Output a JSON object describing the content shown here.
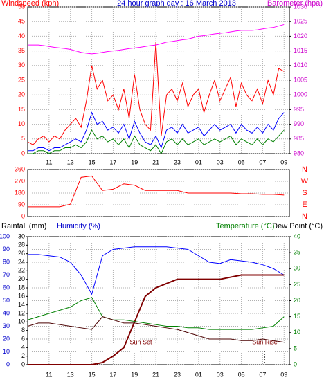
{
  "chart_data": [
    {
      "type": "line",
      "title": "24 hour graph day : 16 March 2013",
      "title_color": "#0000cc",
      "axis_titles": [
        {
          "text": "Windspeed (kph)",
          "color": "#ff0000"
        },
        {
          "text": "Barometer (hpa)",
          "color": "#cc00cc"
        }
      ],
      "x": [
        0,
        0.5,
        1,
        1.5,
        2,
        2.5,
        3,
        3.5,
        4,
        4.5,
        5,
        5.5,
        6,
        6.5,
        7,
        7.5,
        8,
        8.5,
        9,
        9.5,
        10,
        10.5,
        11,
        11.5,
        12,
        12.5,
        13,
        13.5,
        14,
        14.5,
        15,
        15.5,
        16,
        16.5,
        17,
        17.5,
        18,
        18.5,
        19,
        19.5,
        20,
        20.5,
        21,
        21.5,
        22,
        22.5,
        23,
        23.5,
        24
      ],
      "xlim": [
        0,
        24.5
      ],
      "xticks": [
        {
          "value": 2,
          "label": "11"
        },
        {
          "value": 4,
          "label": "13"
        },
        {
          "value": 6,
          "label": "15"
        },
        {
          "value": 8,
          "label": "17"
        },
        {
          "value": 10,
          "label": "19"
        },
        {
          "value": 12,
          "label": "21"
        },
        {
          "value": 14,
          "label": "23"
        },
        {
          "value": 16,
          "label": "01"
        },
        {
          "value": 18,
          "label": "03"
        },
        {
          "value": 20,
          "label": "05"
        },
        {
          "value": 22,
          "label": "07"
        },
        {
          "value": 24,
          "label": "09"
        }
      ],
      "ylim": [
        0,
        50
      ],
      "yticks": [
        0,
        5,
        10,
        15,
        20,
        25,
        30,
        35,
        40,
        45,
        50
      ],
      "ytick_color": "#ff0000",
      "y2lim": [
        980,
        1030
      ],
      "y2ticks": [
        980,
        985,
        990,
        995,
        1000,
        1005,
        1010,
        1015,
        1020,
        1025,
        1030
      ],
      "y2tick_color": "#cc00cc",
      "grid": true,
      "series": [
        {
          "color": "#ff0000",
          "axis": "y",
          "values": [
            4,
            3,
            5,
            6,
            4,
            6,
            5,
            8,
            10,
            12,
            9,
            18,
            30,
            22,
            25,
            18,
            20,
            15,
            22,
            12,
            27,
            15,
            10,
            8,
            38,
            6,
            20,
            22,
            18,
            24,
            16,
            20,
            22,
            14,
            20,
            25,
            18,
            22,
            26,
            16,
            24,
            20,
            18,
            22,
            17,
            25,
            20,
            29,
            28
          ]
        },
        {
          "color": "#0000ff",
          "axis": "y",
          "values": [
            1,
            1,
            2,
            2,
            1,
            2,
            2,
            3,
            4,
            5,
            4,
            8,
            14,
            10,
            11,
            8,
            9,
            7,
            10,
            5,
            11,
            7,
            4,
            3,
            6,
            2,
            8,
            9,
            7,
            10,
            7,
            8,
            9,
            6,
            8,
            10,
            8,
            9,
            10,
            7,
            10,
            8,
            7,
            9,
            7,
            10,
            8,
            12,
            14
          ]
        },
        {
          "color": "#008000",
          "axis": "y",
          "values": [
            0,
            0,
            1,
            1,
            0,
            1,
            1,
            2,
            2,
            3,
            2,
            4,
            8,
            5,
            6,
            4,
            5,
            3,
            5,
            2,
            6,
            3,
            2,
            1,
            3,
            0,
            4,
            5,
            3,
            5,
            3,
            4,
            5,
            3,
            4,
            5,
            4,
            5,
            6,
            3,
            5,
            4,
            3,
            5,
            3,
            5,
            4,
            6,
            8
          ]
        },
        {
          "color": "#ff00ff",
          "axis": "y2",
          "values": [
            1017,
            1017,
            1017,
            1016.8,
            1016.5,
            1016.2,
            1016,
            1015.8,
            1015.5,
            1015,
            1014.5,
            1014.2,
            1014,
            1014.2,
            1014.5,
            1014.8,
            1015,
            1015.2,
            1015.5,
            1015.8,
            1016,
            1016.2,
            1016.5,
            1016.8,
            1017,
            1017.5,
            1018,
            1018.2,
            1018.5,
            1018.8,
            1019,
            1019.5,
            1020,
            1020.2,
            1020.5,
            1020.8,
            1021,
            1021.2,
            1021.5,
            1021.8,
            1022,
            1022,
            1022,
            1022.2,
            1022.5,
            1022.8,
            1023,
            1023.5,
            1024
          ]
        }
      ]
    },
    {
      "type": "line",
      "x": [
        0,
        1,
        2,
        3,
        4,
        5,
        6,
        7,
        8,
        9,
        10,
        11,
        12,
        13,
        14,
        15,
        16,
        17,
        18,
        19,
        20,
        21,
        22,
        23,
        24
      ],
      "xlim": [
        0,
        24.5
      ],
      "ylim": [
        0,
        360
      ],
      "yticks": [
        0,
        90,
        180,
        270,
        360
      ],
      "ytick_color": "#ff0000",
      "compass": [
        "N",
        "W",
        "S",
        "E",
        "N"
      ],
      "grid": true,
      "series": [
        {
          "color": "#ff0000",
          "axis": "y",
          "values": [
            75,
            75,
            75,
            75,
            95,
            300,
            310,
            200,
            210,
            250,
            240,
            200,
            200,
            200,
            200,
            180,
            180,
            180,
            180,
            180,
            175,
            175,
            170,
            170,
            165
          ]
        }
      ]
    },
    {
      "type": "line",
      "axis_titles": [
        {
          "text": "Rainfall (mm)",
          "color": "#000000"
        },
        {
          "text": "Humidity (%)",
          "color": "#0000cc"
        },
        {
          "text": "Temperature (°C)",
          "color": "#008000"
        },
        {
          "text": "Dew Point (°C)",
          "color": "#000000"
        }
      ],
      "x": [
        0,
        1,
        2,
        3,
        4,
        5,
        6,
        7,
        8,
        9,
        10,
        11,
        12,
        13,
        14,
        15,
        16,
        17,
        18,
        19,
        20,
        21,
        22,
        23,
        24
      ],
      "xlim": [
        0,
        24.5
      ],
      "xticks": [
        {
          "value": 2,
          "label": "11"
        },
        {
          "value": 4,
          "label": "13"
        },
        {
          "value": 6,
          "label": "15"
        },
        {
          "value": 8,
          "label": "17"
        },
        {
          "value": 10,
          "label": "19"
        },
        {
          "value": 12,
          "label": "21"
        },
        {
          "value": 14,
          "label": "23"
        },
        {
          "value": 16,
          "label": "01"
        },
        {
          "value": 18,
          "label": "03"
        },
        {
          "value": 20,
          "label": "05"
        },
        {
          "value": 22,
          "label": "07"
        },
        {
          "value": 24,
          "label": "09"
        }
      ],
      "ylim": [
        0,
        100
      ],
      "yticks": [
        0,
        10,
        20,
        30,
        40,
        50,
        60,
        70,
        80,
        90,
        100
      ],
      "ytick_color": "#0000cc",
      "y3lim": [
        0,
        30
      ],
      "y3ticks": [
        0,
        2,
        4,
        6,
        8,
        10,
        12,
        14,
        16,
        18,
        20,
        22,
        24,
        26,
        28,
        30
      ],
      "y3tick_color": "#000000",
      "y2lim": [
        0,
        40
      ],
      "y2ticks": [
        0,
        5,
        10,
        15,
        20,
        25,
        30,
        35,
        40
      ],
      "y2tick_color": "#008000",
      "grid": true,
      "annotations": [
        {
          "text": "Sun Set",
          "x": 10.6
        },
        {
          "text": "Sun Rise",
          "x": 22.2
        }
      ],
      "series": [
        {
          "color": "#0000ff",
          "axis": "y",
          "values": [
            86,
            86,
            85,
            84,
            80,
            70,
            55,
            85,
            90,
            91,
            92,
            92,
            92,
            92,
            91,
            90,
            85,
            80,
            79,
            82,
            81,
            80,
            78,
            75,
            70
          ]
        },
        {
          "color": "#800000",
          "axis": "y3",
          "width": 2,
          "values": [
            0,
            0,
            0,
            0,
            0,
            0,
            0,
            0.5,
            2,
            4,
            10,
            16,
            18,
            19,
            20,
            20,
            20,
            20,
            20,
            20.5,
            21,
            21,
            21,
            21,
            21
          ]
        },
        {
          "color": "#008000",
          "axis": "y2",
          "values": [
            14,
            15,
            16,
            17,
            18,
            20,
            21,
            15,
            14,
            14,
            13.5,
            13,
            12.5,
            12,
            12,
            11.5,
            11.5,
            11,
            11,
            11,
            11,
            11,
            11.5,
            12,
            15
          ]
        },
        {
          "color": "#4a0000",
          "axis": "y2",
          "values": [
            12,
            13,
            13,
            12.5,
            12,
            11.5,
            11,
            15,
            14,
            13,
            13,
            12.5,
            12,
            11.5,
            11,
            10,
            9,
            8,
            8,
            8,
            7.5,
            7.5,
            8,
            7.5,
            7
          ]
        }
      ]
    }
  ]
}
